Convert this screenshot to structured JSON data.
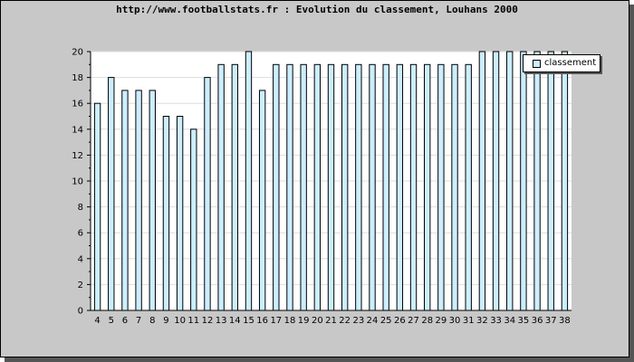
{
  "chart_data": {
    "type": "bar",
    "title": "http://www.footballstats.fr : Evolution du classement, Louhans 2000",
    "categories": [
      "4",
      "5",
      "6",
      "7",
      "8",
      "9",
      "10",
      "11",
      "12",
      "13",
      "14",
      "15",
      "16",
      "17",
      "18",
      "19",
      "20",
      "21",
      "22",
      "23",
      "24",
      "25",
      "26",
      "27",
      "28",
      "29",
      "30",
      "31",
      "32",
      "33",
      "34",
      "35",
      "36",
      "37",
      "38"
    ],
    "series": [
      {
        "name": "classement",
        "values": [
          16,
          18,
          17,
          17,
          17,
          15,
          15,
          14,
          18,
          19,
          19,
          20,
          17,
          19,
          19,
          19,
          19,
          19,
          19,
          19,
          19,
          19,
          19,
          19,
          19,
          19,
          19,
          19,
          20,
          20,
          20,
          20,
          20,
          20,
          20
        ]
      }
    ],
    "ylim": [
      0,
      20
    ],
    "yticks": [
      0,
      2,
      4,
      6,
      8,
      10,
      12,
      14,
      16,
      18,
      20
    ],
    "grid": true,
    "legend_position": "top-right",
    "colors": {
      "bar_fill": "#cceeff",
      "bar_stroke": "#000000",
      "plot_background": "#ffffff",
      "frame_background": "#c8c8c8",
      "grid": "#dddddd"
    }
  }
}
